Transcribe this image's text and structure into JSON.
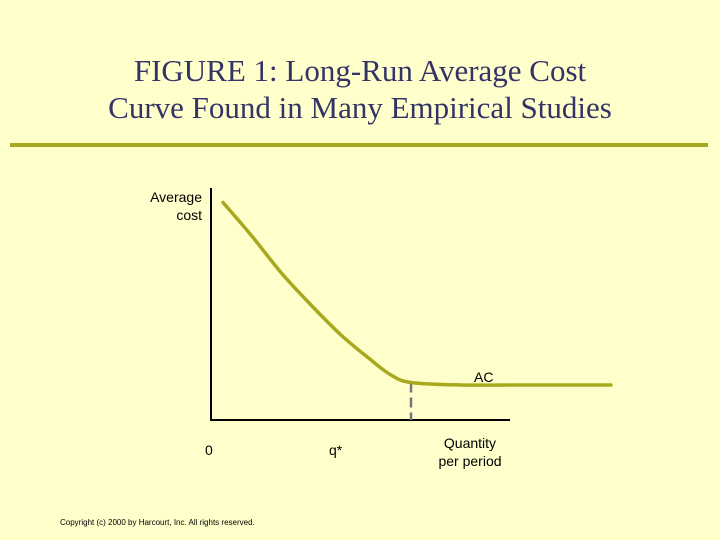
{
  "slide": {
    "title_line1": "FIGURE 1: Long-Run Average Cost",
    "title_line2": "Curve Found in Many Empirical Studies",
    "copyright": "Copyright (c) 2000 by Harcourt, Inc. All rights reserved."
  },
  "colors": {
    "background": "#ffffcc",
    "title_text": "#333366",
    "accent_rule": "#a8a81e",
    "curve": "#a8a81e",
    "axis": "#000000",
    "dashed_guide": "#777777"
  },
  "chart_data": {
    "type": "line",
    "ylabel_line1": "Average",
    "ylabel_line2": "cost",
    "xlabel_line1": "Quantity",
    "xlabel_line2": "per period",
    "origin_label": "0",
    "x_tick_label": "q*",
    "series": [
      {
        "name": "AC",
        "x": [
          0.12,
          0.4,
          0.7,
          1.0,
          1.3,
          1.6,
          1.8,
          2.0,
          2.5,
          3.0,
          3.5,
          4.0
        ],
        "y": [
          8.7,
          7.4,
          5.9,
          4.6,
          3.4,
          2.4,
          1.8,
          1.5,
          1.4,
          1.4,
          1.4,
          1.4
        ]
      }
    ],
    "q_star": 2.0,
    "xlim": [
      0,
      5
    ],
    "ylim": [
      0,
      10
    ],
    "grid": false,
    "legend": "none"
  }
}
